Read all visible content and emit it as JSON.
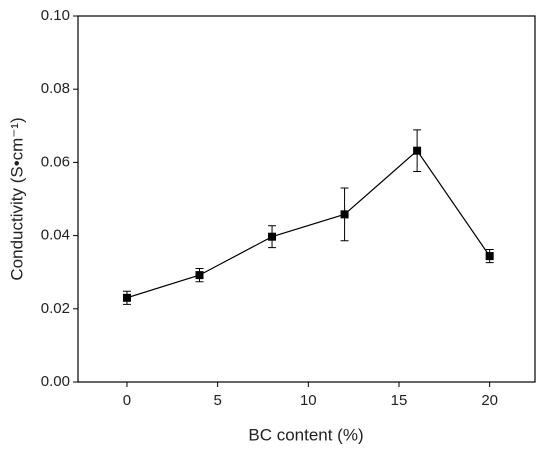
{
  "chart_data": {
    "type": "line",
    "xlabel": "BC content (%)",
    "ylabel": "Conductivity (S•cm⁻¹)",
    "x": [
      0,
      4,
      8,
      12,
      16,
      20
    ],
    "values": [
      0.023,
      0.0292,
      0.0397,
      0.0458,
      0.0632,
      0.0344
    ],
    "errors": [
      0.0018,
      0.0018,
      0.003,
      0.0072,
      0.0057,
      0.0018
    ],
    "color": "#000000",
    "xlim": [
      -2.7,
      22.5
    ],
    "xticks": [
      0,
      5,
      10,
      15,
      20
    ],
    "ylim": [
      0,
      0.1
    ],
    "yticks": [
      {
        "value": 0,
        "label": "0.00"
      },
      {
        "value": 0.02,
        "label": "0.02"
      },
      {
        "value": 0.04,
        "label": "0.04"
      },
      {
        "value": 0.06,
        "label": "0.06"
      },
      {
        "value": 0.08,
        "label": "0.08"
      },
      {
        "value": 0.1,
        "label": "0.10"
      }
    ]
  }
}
